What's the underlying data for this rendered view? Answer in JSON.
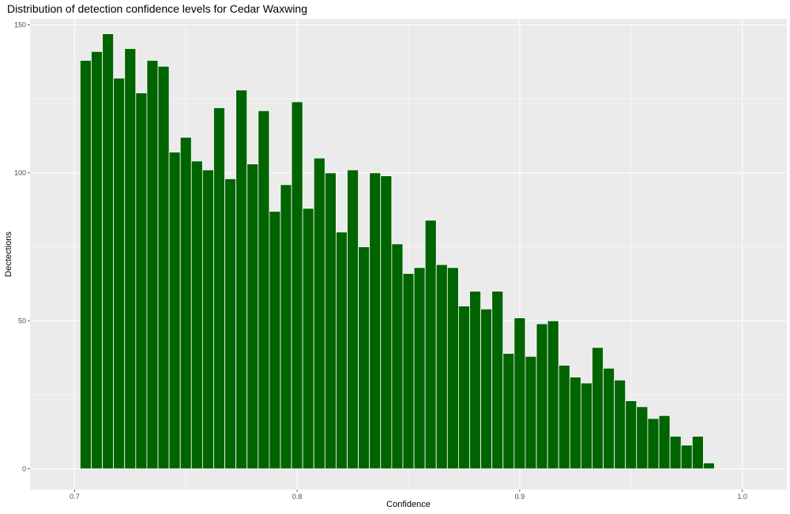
{
  "chart_data": {
    "type": "bar",
    "title": "Distribution of detection confidence levels for Cedar Waxwing",
    "xlabel": "Confidence",
    "ylabel": "Dectections",
    "xlim": [
      0.68,
      1.02
    ],
    "ylim": [
      -7,
      152
    ],
    "x_ticks": [
      0.7,
      0.8,
      0.9,
      1.0
    ],
    "x_tick_labels": [
      "0.7",
      "0.8",
      "0.9",
      "1.0"
    ],
    "y_ticks": [
      0,
      50,
      100,
      150
    ],
    "y_tick_labels": [
      "0",
      "50",
      "100",
      "150"
    ],
    "bin_start": 0.7025,
    "bin_width": 0.005,
    "values": [
      138,
      141,
      147,
      132,
      142,
      127,
      138,
      136,
      107,
      112,
      104,
      101,
      122,
      98,
      128,
      103,
      121,
      87,
      96,
      124,
      88,
      105,
      100,
      80,
      101,
      75,
      100,
      99,
      76,
      66,
      68,
      84,
      69,
      68,
      55,
      60,
      54,
      60,
      39,
      51,
      38,
      49,
      50,
      35,
      31,
      29,
      41,
      34,
      30,
      23,
      21,
      17,
      18,
      11,
      8,
      11,
      2
    ],
    "bar_color": "#006400",
    "panel_color": "#ebebeb",
    "grid": true,
    "legend": "none"
  }
}
